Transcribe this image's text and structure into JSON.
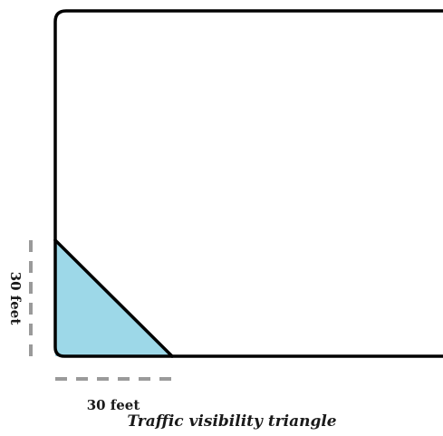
{
  "dimensions": {
    "vertical_label": "30 feet",
    "horizontal_label": "30 feet"
  },
  "caption": "Traffic visibility triangle",
  "colors": {
    "triangle_fill": "#9dd8e8",
    "outline": "#000000",
    "dimension_dash": "#9a9a9a"
  }
}
